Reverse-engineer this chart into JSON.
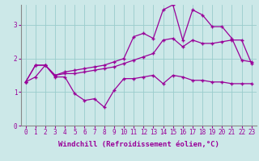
{
  "x": [
    0,
    1,
    2,
    3,
    4,
    5,
    6,
    7,
    8,
    9,
    10,
    11,
    12,
    13,
    14,
    15,
    16,
    17,
    18,
    19,
    20,
    21,
    22,
    23
  ],
  "line1": [
    1.3,
    1.45,
    1.8,
    1.45,
    1.45,
    0.95,
    0.75,
    0.8,
    0.55,
    1.05,
    1.4,
    1.4,
    1.45,
    1.5,
    1.25,
    1.5,
    1.45,
    1.35,
    1.35,
    1.3,
    1.3,
    1.25,
    1.25,
    1.25
  ],
  "line2": [
    1.3,
    1.8,
    1.8,
    1.5,
    1.55,
    1.55,
    1.6,
    1.65,
    1.7,
    1.75,
    1.85,
    1.95,
    2.05,
    2.15,
    2.55,
    2.6,
    2.35,
    2.55,
    2.45,
    2.45,
    2.5,
    2.55,
    2.55,
    1.85
  ],
  "line3": [
    1.3,
    1.8,
    1.8,
    1.5,
    1.6,
    1.65,
    1.7,
    1.75,
    1.8,
    1.9,
    2.0,
    2.65,
    2.75,
    2.6,
    3.45,
    3.6,
    2.55,
    3.45,
    3.3,
    2.95,
    2.95,
    2.6,
    1.95,
    1.9
  ],
  "line_color": "#990099",
  "bg_color": "#cce8e8",
  "grid_color": "#99cccc",
  "xlabel": "Windchill (Refroidissement éolien,°C)",
  "ylim": [
    0,
    3.6
  ],
  "xlim": [
    -0.5,
    23.5
  ],
  "yticks": [
    0,
    1,
    2,
    3
  ],
  "xticks": [
    0,
    1,
    2,
    3,
    4,
    5,
    6,
    7,
    8,
    9,
    10,
    11,
    12,
    13,
    14,
    15,
    16,
    17,
    18,
    19,
    20,
    21,
    22,
    23
  ],
  "xlabel_fontsize": 6.5,
  "tick_fontsize": 5.5,
  "marker": "+"
}
